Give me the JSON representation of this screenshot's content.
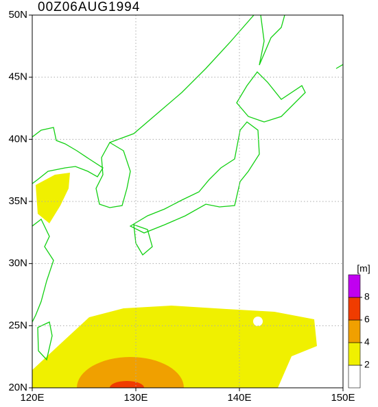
{
  "map": {
    "title": "00Z06AUG1994",
    "xlim": [
      120,
      150
    ],
    "ylim": [
      20,
      50
    ],
    "xticks": [
      {
        "value": 120,
        "label": "120E"
      },
      {
        "value": 130,
        "label": "130E"
      },
      {
        "value": 140,
        "label": "140E"
      },
      {
        "value": 150,
        "label": "150E"
      }
    ],
    "yticks": [
      {
        "value": 20,
        "label": "20N"
      },
      {
        "value": 25,
        "label": "25N"
      },
      {
        "value": 30,
        "label": "30N"
      },
      {
        "value": 35,
        "label": "35N"
      },
      {
        "value": 40,
        "label": "40N"
      },
      {
        "value": 45,
        "label": "45N"
      },
      {
        "value": 50,
        "label": "50N"
      }
    ],
    "grid": true,
    "colorbar": {
      "unit": "[m]",
      "ticks": [
        2,
        4,
        6,
        8
      ],
      "colors": [
        "#ffffff",
        "#f0f000",
        "#f0a000",
        "#f03c00",
        "#c000f0"
      ]
    }
  }
}
